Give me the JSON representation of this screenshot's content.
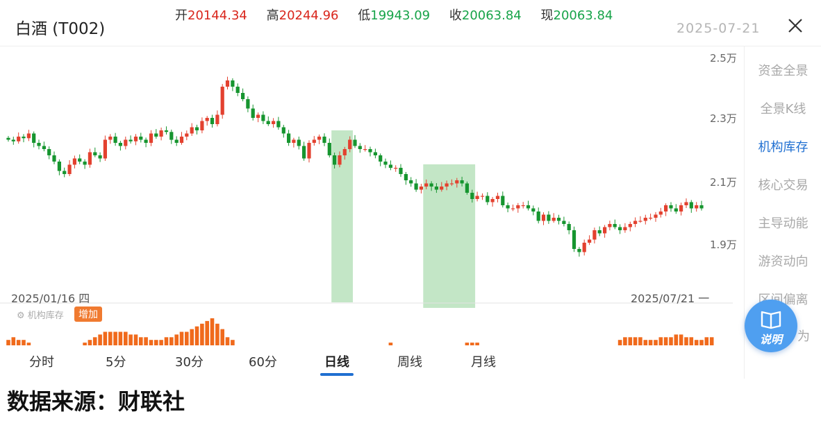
{
  "header": {
    "title": "白酒 (T002)",
    "ohlc": [
      {
        "label": "开",
        "value": "20144.34",
        "color": "red"
      },
      {
        "label": "高",
        "value": "20244.96",
        "color": "red"
      },
      {
        "label": "低",
        "value": "19943.09",
        "color": "green"
      },
      {
        "label": "收",
        "value": "20063.84",
        "color": "green"
      },
      {
        "label": "现",
        "value": "20063.84",
        "color": "green"
      }
    ],
    "date": "2025-07-21"
  },
  "chart": {
    "y_labels": [
      "2.5万",
      "2.3万",
      "2.1万",
      "1.9万"
    ],
    "y_values": [
      25000,
      23000,
      21000,
      19000
    ],
    "start_date": "2025/01/16 四",
    "end_date": "2025/07/21 一"
  },
  "chart_data": {
    "type": "candlestick",
    "y_axis_ticks": [
      25000,
      23000,
      21000,
      19000
    ],
    "start_date": "2025/01/16 四",
    "end_date": "2025/07/21 一",
    "close_series": [
      22300,
      22250,
      22400,
      22350,
      22500,
      22200,
      22100,
      22000,
      21800,
      21600,
      21300,
      21200,
      21500,
      21700,
      21600,
      21500,
      21900,
      21800,
      21700,
      22300,
      22400,
      22200,
      22100,
      22300,
      22250,
      22400,
      22300,
      22200,
      22500,
      22400,
      22600,
      22550,
      22300,
      22200,
      22400,
      22500,
      22700,
      22600,
      22900,
      23000,
      22800,
      23100,
      24000,
      24200,
      24000,
      23800,
      23600,
      23300,
      23000,
      23100,
      22900,
      22800,
      22900,
      22700,
      22500,
      22200,
      22300,
      22100,
      21700,
      22200,
      22300,
      22400,
      22200,
      21800,
      21500,
      21800,
      22000,
      22300,
      22100,
      22000,
      22000,
      21900,
      21800,
      21600,
      21500,
      21400,
      21400,
      21200,
      21000,
      20900,
      20700,
      20800,
      20900,
      20800,
      20700,
      20800,
      20900,
      20900,
      21000,
      20900,
      20600,
      20400,
      20500,
      20500,
      20300,
      20400,
      20500,
      20200,
      20100,
      20100,
      20200,
      20200,
      20100,
      20000,
      19700,
      19900,
      19700,
      19800,
      19700,
      19600,
      19400,
      18800,
      18700,
      19000,
      19100,
      19400,
      19300,
      19500,
      19600,
      19500,
      19400,
      19500,
      19600,
      19700,
      19700,
      19800,
      19800,
      19900,
      20000,
      20200,
      20100,
      20000,
      20200,
      20300,
      20100,
      20200,
      20100
    ],
    "highlight_ranges": [
      [
        64,
        67
      ],
      [
        82,
        91
      ]
    ],
    "volume_flags": "机构库存 增加",
    "volume_bars": [
      2,
      3,
      2,
      2,
      1,
      0,
      0,
      0,
      0,
      0,
      0,
      0,
      0,
      0,
      0,
      1,
      2,
      3,
      4,
      5,
      5,
      5,
      5,
      5,
      4,
      4,
      3,
      3,
      2,
      2,
      2,
      3,
      3,
      4,
      5,
      5,
      6,
      7,
      8,
      9,
      10,
      8,
      6,
      3,
      2,
      0,
      0,
      0,
      0,
      0,
      0,
      0,
      0,
      0,
      0,
      0,
      0,
      0,
      0,
      0,
      0,
      0,
      0,
      0,
      0,
      0,
      0,
      0,
      0,
      0,
      0,
      0,
      0,
      0,
      0,
      1,
      0,
      0,
      0,
      0,
      0,
      0,
      0,
      0,
      0,
      0,
      0,
      0,
      0,
      0,
      1,
      1,
      1,
      0,
      0,
      0,
      0,
      0,
      0,
      0,
      0,
      0,
      0,
      0,
      0,
      0,
      0,
      0,
      0,
      0,
      0,
      0,
      0,
      0,
      0,
      0,
      0,
      0,
      0,
      0,
      2,
      3,
      3,
      3,
      3,
      2,
      2,
      2,
      3,
      3,
      3,
      4,
      4,
      3,
      3,
      2,
      2,
      3,
      3
    ]
  },
  "legend": {
    "label": "⚙ 机构库存",
    "badge": "增加"
  },
  "right_nav": {
    "items": [
      "资金全景",
      "全景K线",
      "机构库存",
      "核心交易",
      "主导动能",
      "游资动向",
      "区间偏离"
    ],
    "active": "机构库存",
    "partial": "为"
  },
  "help": {
    "label": "说明"
  },
  "tabs": [
    "分时",
    "5分",
    "30分",
    "60分",
    "日线",
    "周线",
    "月线"
  ],
  "active_tab": "日线",
  "footer": {
    "source": "数据来源：财联社"
  },
  "colors": {
    "up": "#e3412f",
    "down": "#16952f",
    "accent": "#1f6fd1",
    "highlight": "#c3e6c6",
    "volume": "#f06a1c"
  }
}
